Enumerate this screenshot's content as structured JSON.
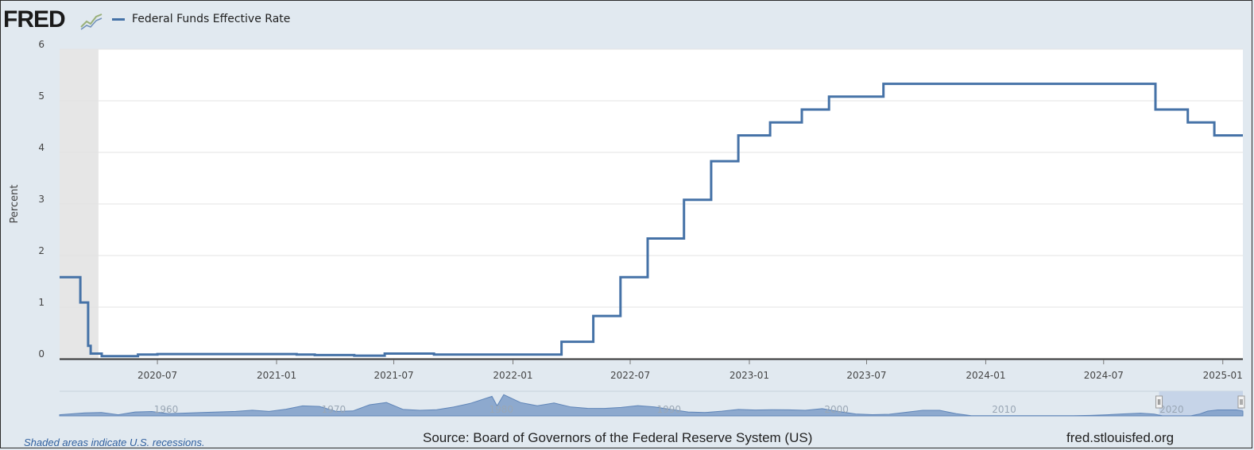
{
  "brand": {
    "logo_text": "FRED"
  },
  "legend": {
    "series_name": "Federal Funds Effective Rate"
  },
  "colors": {
    "series": "#4572a7",
    "plot_bg": "#ffffff",
    "page_bg": "#e1e9f0",
    "recession": "#e6e6e6",
    "navigator_fill": "#7e9ec8",
    "navigator_window": "#c6d4e8"
  },
  "chart_data": {
    "type": "line",
    "title": "",
    "ylabel": "Percent",
    "xlabel": "",
    "ylim": [
      0,
      6
    ],
    "y_ticks": [
      "0",
      "1",
      "2",
      "3",
      "4",
      "5",
      "6"
    ],
    "x_ticks": [
      "2020-07",
      "2021-01",
      "2021-07",
      "2022-01",
      "2022-07",
      "2023-01",
      "2023-07",
      "2024-01",
      "2024-07",
      "2025-01"
    ],
    "x_range": [
      "2020-02-01",
      "2025-02-01"
    ],
    "grid": true,
    "legend_position": "top-left",
    "recession_shading": [
      [
        "2020-02-01",
        "2020-04-01"
      ]
    ],
    "series": [
      {
        "name": "Federal Funds Effective Rate",
        "step": true,
        "points": [
          [
            "2020-02-01",
            1.58
          ],
          [
            "2020-03-04",
            1.09
          ],
          [
            "2020-03-16",
            0.25
          ],
          [
            "2020-03-20",
            0.1
          ],
          [
            "2020-04-06",
            0.05
          ],
          [
            "2020-06-01",
            0.08
          ],
          [
            "2020-07-01",
            0.09
          ],
          [
            "2020-09-01",
            0.09
          ],
          [
            "2021-01-01",
            0.09
          ],
          [
            "2021-02-01",
            0.08
          ],
          [
            "2021-03-01",
            0.07
          ],
          [
            "2021-05-01",
            0.06
          ],
          [
            "2021-06-17",
            0.1
          ],
          [
            "2021-09-01",
            0.08
          ],
          [
            "2022-03-17",
            0.33
          ],
          [
            "2022-05-05",
            0.83
          ],
          [
            "2022-06-16",
            1.58
          ],
          [
            "2022-07-28",
            2.33
          ],
          [
            "2022-09-22",
            3.08
          ],
          [
            "2022-11-03",
            3.83
          ],
          [
            "2022-12-15",
            4.33
          ],
          [
            "2023-02-02",
            4.58
          ],
          [
            "2023-03-23",
            4.83
          ],
          [
            "2023-05-04",
            5.08
          ],
          [
            "2023-07-27",
            5.33
          ],
          [
            "2024-09-19",
            4.83
          ],
          [
            "2024-11-08",
            4.58
          ],
          [
            "2024-12-19",
            4.33
          ],
          [
            "2025-02-01",
            4.33
          ]
        ]
      }
    ],
    "navigator": {
      "labels": [
        "1960",
        "1970",
        "1980",
        "1990",
        "2000",
        "2010",
        "2020"
      ],
      "start_year": 1954.5,
      "end_year": 2025.1,
      "approx_values": [
        [
          1954.5,
          1.0
        ],
        [
          1956,
          2.7
        ],
        [
          1957,
          3.0
        ],
        [
          1958,
          1.0
        ],
        [
          1959,
          3.5
        ],
        [
          1960,
          3.9
        ],
        [
          1961,
          1.9
        ],
        [
          1963,
          3.0
        ],
        [
          1965,
          4.0
        ],
        [
          1966,
          5.1
        ],
        [
          1967,
          4.0
        ],
        [
          1968,
          6.0
        ],
        [
          1969,
          9.0
        ],
        [
          1970,
          8.5
        ],
        [
          1971,
          4.0
        ],
        [
          1972,
          4.4
        ],
        [
          1973,
          10.0
        ],
        [
          1974,
          12.0
        ],
        [
          1975,
          5.8
        ],
        [
          1976,
          5.0
        ],
        [
          1977,
          5.5
        ],
        [
          1978,
          7.9
        ],
        [
          1979,
          11.2
        ],
        [
          1980.3,
          17.6
        ],
        [
          1980.6,
          9.0
        ],
        [
          1981,
          19.1
        ],
        [
          1982,
          12.0
        ],
        [
          1983,
          9.1
        ],
        [
          1984,
          11.6
        ],
        [
          1985,
          8.0
        ],
        [
          1986,
          6.8
        ],
        [
          1987,
          6.7
        ],
        [
          1988,
          7.6
        ],
        [
          1989,
          9.2
        ],
        [
          1990,
          8.1
        ],
        [
          1991,
          5.7
        ],
        [
          1992,
          3.5
        ],
        [
          1993,
          3.0
        ],
        [
          1994,
          4.2
        ],
        [
          1995,
          5.8
        ],
        [
          1996,
          5.3
        ],
        [
          1997,
          5.5
        ],
        [
          1998,
          5.4
        ],
        [
          1999,
          5.0
        ],
        [
          2000,
          6.5
        ],
        [
          2001,
          3.9
        ],
        [
          2002,
          1.7
        ],
        [
          2003,
          1.1
        ],
        [
          2004,
          1.4
        ],
        [
          2005,
          3.2
        ],
        [
          2006,
          5.0
        ],
        [
          2007,
          5.0
        ],
        [
          2008,
          1.9
        ],
        [
          2008.9,
          0.15
        ],
        [
          2015,
          0.13
        ],
        [
          2016,
          0.4
        ],
        [
          2017,
          1.0
        ],
        [
          2018,
          1.8
        ],
        [
          2019,
          2.4
        ],
        [
          2019.8,
          1.6
        ],
        [
          2020.3,
          0.05
        ],
        [
          2022,
          0.08
        ],
        [
          2022.5,
          1.6
        ],
        [
          2023,
          4.3
        ],
        [
          2023.6,
          5.33
        ],
        [
          2024.7,
          5.33
        ],
        [
          2025.1,
          4.33
        ]
      ]
    }
  },
  "footer": {
    "note": "Shaded areas indicate U.S. recessions.",
    "source": "Source: Board of Governors of the Federal Reserve System (US)",
    "site": "fred.stlouisfed.org"
  }
}
